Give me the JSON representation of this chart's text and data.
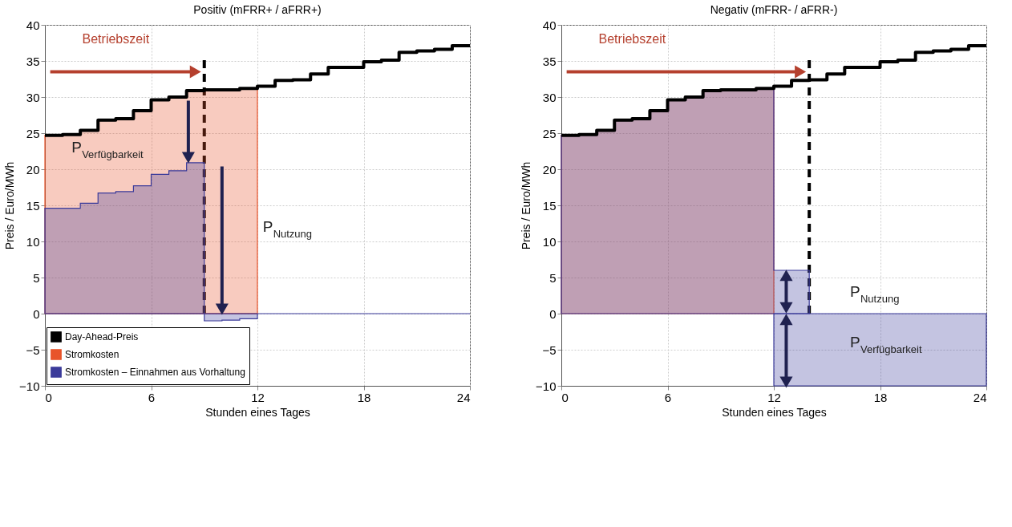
{
  "chart_data": [
    {
      "type": "area",
      "title": "Positiv (mFRR+ / aFRR+)",
      "xlabel": "Stunden eines Tages",
      "ylabel": "Preis / Euro/MWh",
      "xlim": [
        0,
        24
      ],
      "ylim": [
        -10,
        40
      ],
      "xticks": [
        0,
        6,
        12,
        18,
        24
      ],
      "yticks": [
        -10,
        -5,
        0,
        5,
        10,
        15,
        20,
        25,
        30,
        35,
        40
      ],
      "grid": true,
      "legend": "bottom left",
      "ref_lines": [
        {
          "axis": "y",
          "value": 0,
          "line_style": "solid",
          "color": "#3b3b9a"
        },
        {
          "axis": "x",
          "value": 9,
          "line_style": "dashed",
          "color": "#000000"
        }
      ],
      "annotations": [
        "Betriebszeit",
        "P$_{Verfügbarkeit}$",
        "P$_{Nutzung}$"
      ],
      "series": [
        {
          "name": "Day-Ahead-Preis",
          "type": "step",
          "color": "#000000",
          "x": [
            0,
            1,
            2,
            3,
            4,
            5,
            6,
            7,
            8,
            9,
            10,
            11,
            12,
            13,
            14,
            15,
            16,
            17,
            18,
            19,
            20,
            21,
            22,
            23,
            24
          ],
          "values": [
            24.7,
            24.8,
            25.4,
            26.8,
            27.0,
            28.1,
            29.6,
            30.0,
            30.9,
            31.0,
            31.0,
            31.2,
            31.5,
            32.3,
            32.4,
            33.2,
            34.1,
            34.1,
            34.9,
            35.1,
            36.2,
            36.4,
            36.6,
            37.1,
            37.1
          ]
        },
        {
          "name": "Stromkosten",
          "color": "#e8542a",
          "x": [
            0,
            1,
            2,
            3,
            4,
            5,
            6,
            7,
            8,
            9,
            10,
            11,
            12
          ],
          "values": [
            24.7,
            24.8,
            25.4,
            26.8,
            27.0,
            28.1,
            29.6,
            30.0,
            30.9,
            31.0,
            31.0,
            31.2,
            31.2
          ]
        },
        {
          "name": "Stromkosten – Einnahmen aus Vorhaltung",
          "color": "#3b3b9a",
          "x": [
            0,
            1,
            2,
            3,
            4,
            5,
            6,
            7,
            8,
            9,
            10,
            11,
            12
          ],
          "values": [
            14.6,
            14.6,
            15.3,
            16.7,
            16.9,
            17.7,
            19.3,
            19.8,
            20.9,
            -1.0,
            -0.9,
            -0.7,
            -0.7
          ]
        }
      ]
    },
    {
      "type": "area",
      "title": "Negativ (mFRR- / aFRR-)",
      "xlabel": "Stunden eines Tages",
      "ylabel": "Preis / Euro/MWh",
      "xlim": [
        0,
        24
      ],
      "ylim": [
        -10,
        40
      ],
      "xticks": [
        0,
        6,
        12,
        18,
        24
      ],
      "yticks": [
        -10,
        -5,
        0,
        5,
        10,
        15,
        20,
        25,
        30,
        35,
        40
      ],
      "grid": true,
      "ref_lines": [
        {
          "axis": "x",
          "value": 14,
          "line_style": "dashed",
          "color": "#000000"
        }
      ],
      "annotations": [
        "Betriebszeit",
        "P$_{Nutzung}$",
        "P$_{Verfügbarkeit}$"
      ],
      "series": [
        {
          "type": "step",
          "color": "#000000",
          "x": [
            0,
            1,
            2,
            3,
            4,
            5,
            6,
            7,
            8,
            9,
            10,
            11,
            12,
            13,
            14,
            15,
            16,
            17,
            18,
            19,
            20,
            21,
            22,
            23,
            24
          ],
          "values": [
            24.7,
            24.8,
            25.4,
            26.8,
            27.0,
            28.1,
            29.6,
            30.0,
            30.9,
            31.0,
            31.0,
            31.2,
            31.5,
            32.3,
            32.4,
            33.2,
            34.1,
            34.1,
            34.9,
            35.1,
            36.2,
            36.4,
            36.6,
            37.1,
            37.1
          ]
        },
        {
          "color": "#e8542a",
          "x": [
            0,
            1,
            2,
            3,
            4,
            5,
            6,
            7,
            8,
            9,
            10,
            11,
            12
          ],
          "values": [
            24.7,
            24.8,
            25.4,
            26.8,
            27.0,
            28.1,
            29.6,
            30.0,
            30.9,
            31.0,
            31.0,
            31.2,
            31.2
          ]
        },
        {
          "color": "#3b3b9a",
          "x": [
            0,
            1,
            2,
            3,
            4,
            5,
            6,
            7,
            8,
            9,
            10,
            11,
            12,
            14
          ],
          "values": [
            24.7,
            24.8,
            25.4,
            26.8,
            27.0,
            28.1,
            29.6,
            30.0,
            30.9,
            31.0,
            31.0,
            31.2,
            6.0,
            6.0
          ]
        },
        {
          "color": "#3b3b9a",
          "x": [
            12,
            24
          ],
          "values": [
            -10,
            -10
          ]
        }
      ]
    }
  ]
}
